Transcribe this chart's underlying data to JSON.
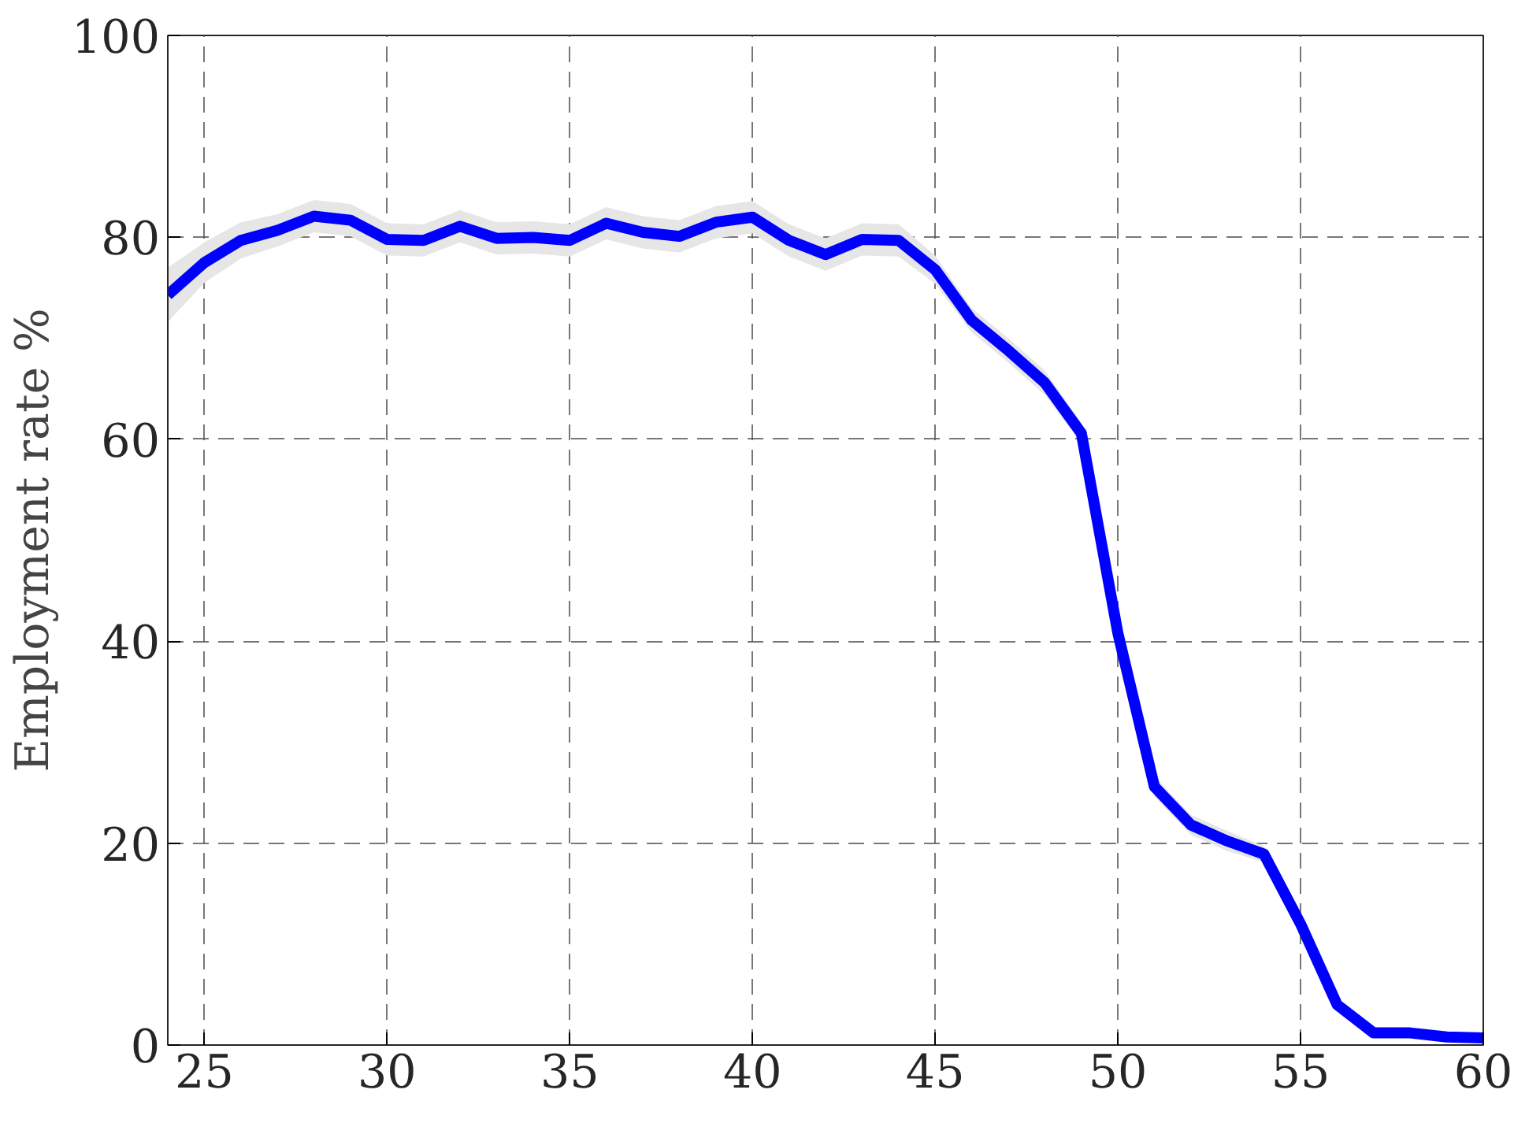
{
  "chart_data": {
    "type": "line",
    "ylabel": "Employment rate %",
    "x": [
      24,
      25,
      26,
      27,
      28,
      29,
      30,
      31,
      32,
      33,
      34,
      35,
      36,
      37,
      38,
      39,
      40,
      41,
      42,
      43,
      44,
      45,
      46,
      47,
      48,
      49,
      50,
      51,
      52,
      53,
      54,
      55,
      56,
      57,
      58,
      59,
      60
    ],
    "series": [
      {
        "color": "#0000ff",
        "values": [
          74.3,
          77.5,
          79.7,
          80.7,
          82.1,
          81.7,
          79.8,
          79.7,
          81.1,
          79.9,
          80.0,
          79.7,
          81.4,
          80.5,
          80.1,
          81.5,
          82.0,
          79.7,
          78.3,
          79.8,
          79.7,
          76.8,
          71.8,
          68.8,
          65.6,
          60.6,
          40.8,
          25.6,
          21.8,
          20.2,
          18.9,
          12.0,
          4.0,
          1.2,
          1.2,
          0.8,
          0.7
        ],
        "lower": [
          71.6,
          75.5,
          77.9,
          79.1,
          80.5,
          80.1,
          78.2,
          78.1,
          79.5,
          78.3,
          78.4,
          78.1,
          79.8,
          78.9,
          78.5,
          79.9,
          80.4,
          78.1,
          76.7,
          78.2,
          78.1,
          75.4,
          70.6,
          67.6,
          64.4,
          59.6,
          40.0,
          24.6,
          20.8,
          19.2,
          18.1,
          11.6,
          3.6,
          0.9,
          0.9,
          0.5,
          0.4
        ],
        "upper": [
          77.0,
          79.5,
          81.5,
          82.3,
          83.7,
          83.3,
          81.4,
          81.3,
          82.7,
          81.5,
          81.6,
          81.3,
          83.0,
          82.1,
          81.7,
          83.1,
          83.6,
          81.3,
          79.9,
          81.4,
          81.3,
          78.2,
          73.0,
          70.0,
          66.8,
          61.6,
          41.6,
          26.6,
          22.8,
          21.2,
          19.7,
          12.4,
          4.4,
          1.5,
          1.5,
          1.1,
          1.0
        ]
      }
    ],
    "xlim": [
      24,
      60
    ],
    "ylim": [
      0,
      100
    ],
    "xticks": [
      25,
      30,
      35,
      40,
      45,
      50,
      55,
      60
    ],
    "yticks": [
      0,
      20,
      40,
      60,
      80,
      100
    ],
    "grid": true,
    "line_style": "solid",
    "marker": "none"
  }
}
